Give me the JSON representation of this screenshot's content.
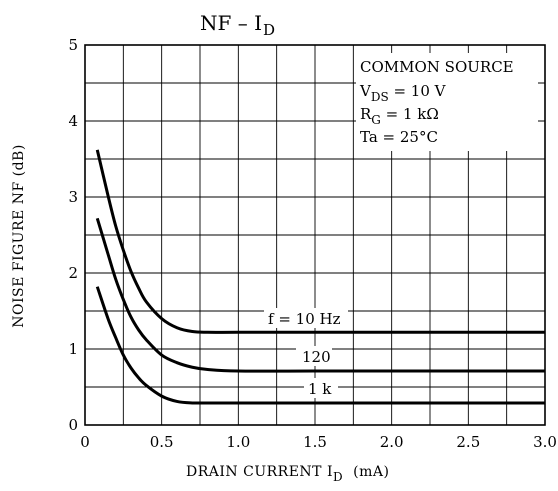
{
  "chart_data": {
    "type": "line",
    "title": "NF – I",
    "title_sub": "D",
    "xlabel": "DRAIN CURRENT  I",
    "xlabel_sub": "D",
    "xlabel_unit": "(mA)",
    "ylabel": "NOISE FIGURE  NF   (dB)",
    "xlim": [
      0,
      3.0
    ],
    "ylim": [
      0,
      5
    ],
    "x_ticks": [
      {
        "value": 0,
        "label": "0"
      },
      {
        "value": 0.5,
        "label": "0.5"
      },
      {
        "value": 1.0,
        "label": "1.0"
      },
      {
        "value": 1.5,
        "label": "1.5"
      },
      {
        "value": 2.0,
        "label": "2.0"
      },
      {
        "value": 2.5,
        "label": "2.5"
      },
      {
        "value": 3.0,
        "label": "3.0"
      }
    ],
    "y_ticks": [
      {
        "value": 0,
        "label": "0"
      },
      {
        "value": 1,
        "label": "1"
      },
      {
        "value": 2,
        "label": "2"
      },
      {
        "value": 3,
        "label": "3"
      },
      {
        "value": 4,
        "label": "4"
      },
      {
        "value": 5,
        "label": "5"
      }
    ],
    "grid": true,
    "conditions": {
      "line1": "COMMON SOURCE",
      "line2_main": "V",
      "line2_sub": "DS",
      "line2_rest": " = 10 V",
      "line3_main": "R",
      "line3_sub": "G",
      "line3_rest": " = 1 kΩ",
      "line4": "Ta = 25°C"
    },
    "series": [
      {
        "name": "f = 10 Hz",
        "x": [
          0.08,
          0.15,
          0.2,
          0.25,
          0.3,
          0.35,
          0.4,
          0.5,
          0.6,
          0.7,
          0.8,
          1.0,
          1.5,
          2.0,
          2.5,
          3.0
        ],
        "y": [
          3.62,
          3.02,
          2.62,
          2.3,
          2.02,
          1.8,
          1.62,
          1.4,
          1.28,
          1.23,
          1.22,
          1.22,
          1.22,
          1.22,
          1.22,
          1.22
        ]
      },
      {
        "name": "120",
        "x": [
          0.08,
          0.15,
          0.2,
          0.25,
          0.3,
          0.35,
          0.4,
          0.5,
          0.6,
          0.7,
          0.8,
          1.0,
          1.5,
          2.0,
          2.5,
          3.0
        ],
        "y": [
          2.72,
          2.25,
          1.92,
          1.65,
          1.42,
          1.25,
          1.12,
          0.92,
          0.82,
          0.76,
          0.73,
          0.71,
          0.71,
          0.71,
          0.71,
          0.71
        ]
      },
      {
        "name": "1 k",
        "x": [
          0.08,
          0.15,
          0.2,
          0.25,
          0.3,
          0.35,
          0.4,
          0.5,
          0.6,
          0.7,
          0.8,
          1.0,
          1.5,
          2.0,
          2.5,
          3.0
        ],
        "y": [
          1.82,
          1.4,
          1.15,
          0.92,
          0.75,
          0.62,
          0.52,
          0.38,
          0.31,
          0.29,
          0.29,
          0.29,
          0.29,
          0.29,
          0.29,
          0.29
        ]
      }
    ]
  }
}
